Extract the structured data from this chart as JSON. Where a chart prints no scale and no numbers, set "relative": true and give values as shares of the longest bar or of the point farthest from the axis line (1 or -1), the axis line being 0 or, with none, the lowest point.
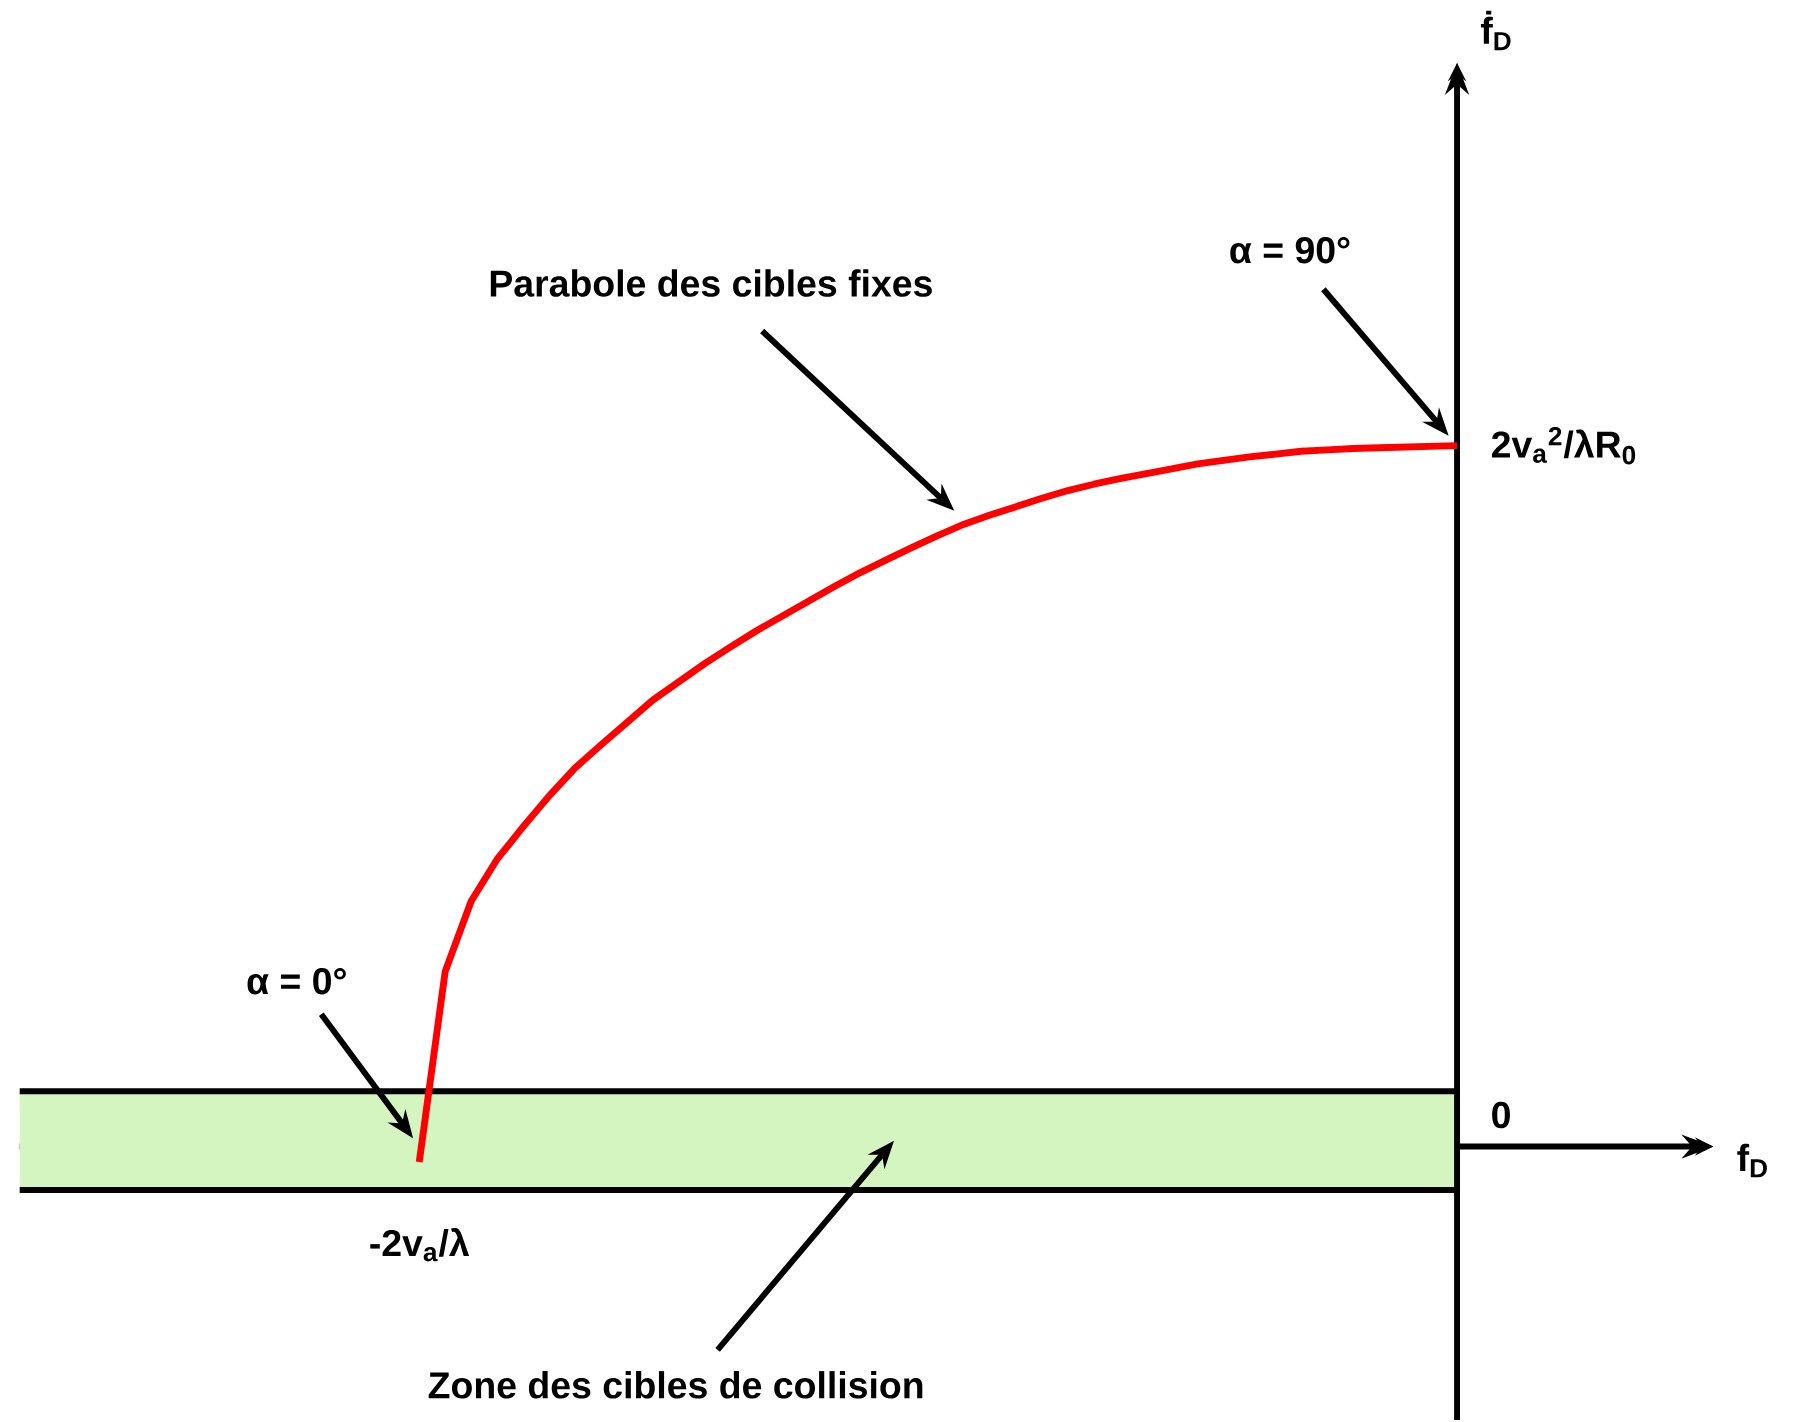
{
  "chart_data": {
    "type": "line",
    "relative": true,
    "categories": [
      null,
      null,
      null,
      null,
      null,
      null,
      null,
      null,
      null,
      null,
      null,
      null,
      null,
      null,
      null,
      null,
      null,
      null,
      null,
      null,
      null,
      null,
      null,
      null,
      null,
      null,
      null,
      null,
      null,
      null,
      null,
      null,
      null,
      null,
      null,
      null,
      null,
      null,
      null,
      null,
      null
    ],
    "values": [
      -0.022,
      0.25,
      0.35,
      0.41,
      0.456,
      0.5,
      0.54,
      0.573,
      0.605,
      0.637,
      0.663,
      0.689,
      0.713,
      0.736,
      0.757,
      0.778,
      0.799,
      0.819,
      0.837,
      0.855,
      0.872,
      0.888,
      0.901,
      0.913,
      0.925,
      0.936,
      0.945,
      0.953,
      0.96,
      0.967,
      0.974,
      0.979,
      0.984,
      0.988,
      0.992,
      0.994,
      0.996,
      0.997,
      0.998,
      0.999,
      1
    ],
    "color": "#ff0000",
    "bands": [
      {
        "axis": "y",
        "from": -0.062,
        "to": 0.079,
        "label": "Zone des cibles de collision",
        "color": "#d4f5c0"
      }
    ],
    "annotations": [
      "Parabole des cibles fixes",
      "α = 90°",
      "α = 0°",
      "2v$_{a}$$^{2}$/λR$_{0}$",
      "0",
      "-2v$_{a}$/λ",
      "f$_{D}$",
      "ḟ$_{D}$"
    ]
  }
}
